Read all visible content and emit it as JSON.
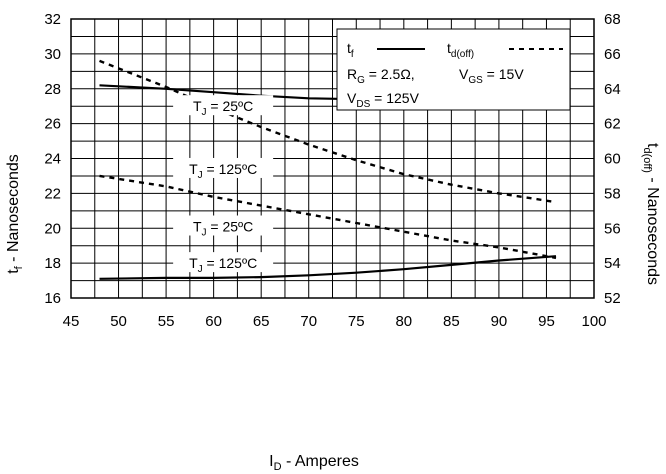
{
  "chart_data": {
    "type": "line",
    "xlabel": "I_D - Amperes",
    "ylabel_left": "t_f - Nanoseconds",
    "ylabel_right": "t_d(off) - Nanoseconds",
    "xlim": [
      45,
      100
    ],
    "ylim_left": [
      16,
      32
    ],
    "ylim_right": [
      52,
      68
    ],
    "x_ticks": [
      "45",
      "50",
      "55",
      "60",
      "65",
      "70",
      "75",
      "80",
      "85",
      "90",
      "95",
      "100"
    ],
    "y_left_ticks": [
      "16",
      "18",
      "20",
      "22",
      "24",
      "26",
      "28",
      "30",
      "32"
    ],
    "y_right_ticks": [
      "52",
      "54",
      "56",
      "58",
      "60",
      "62",
      "64",
      "66",
      "68"
    ],
    "grid": true,
    "legend": {
      "position": "top-right",
      "entries": [
        {
          "label": "t_f",
          "style": "solid"
        },
        {
          "label": "t_d(off)",
          "style": "dashed"
        }
      ],
      "conditions": [
        "R_G = 2.5Ω,",
        "V_GS = 15V",
        "V_DS = 125V"
      ]
    },
    "series": [
      {
        "axis": "left",
        "style": "solid",
        "label": "T_J = 25ºC",
        "x": [
          48,
          55,
          60,
          65,
          70,
          75,
          80,
          85,
          90,
          96
        ],
        "y": [
          28.2,
          28.0,
          27.8,
          27.6,
          27.45,
          27.4,
          27.35,
          27.35,
          27.38,
          27.4
        ]
      },
      {
        "axis": "right",
        "style": "dashed",
        "label": "T_J = 125ºC",
        "x": [
          48,
          55,
          60,
          65,
          70,
          75,
          80,
          85,
          90,
          96
        ],
        "y": [
          65.6,
          64.1,
          62.9,
          61.8,
          60.8,
          59.9,
          59.1,
          58.5,
          58.0,
          57.5
        ]
      },
      {
        "axis": "right",
        "style": "dashed",
        "label": "T_J = 25ºC",
        "x": [
          48,
          55,
          60,
          65,
          70,
          75,
          80,
          85,
          90,
          96
        ],
        "y": [
          59.0,
          58.4,
          57.8,
          57.3,
          56.8,
          56.3,
          55.8,
          55.3,
          54.9,
          54.3
        ]
      },
      {
        "axis": "left",
        "style": "solid",
        "label": "T_J = 125ºC",
        "x": [
          48,
          55,
          60,
          65,
          70,
          75,
          80,
          85,
          90,
          96
        ],
        "y": [
          17.1,
          17.15,
          17.15,
          17.2,
          17.3,
          17.45,
          17.65,
          17.9,
          18.15,
          18.4
        ]
      }
    ]
  }
}
